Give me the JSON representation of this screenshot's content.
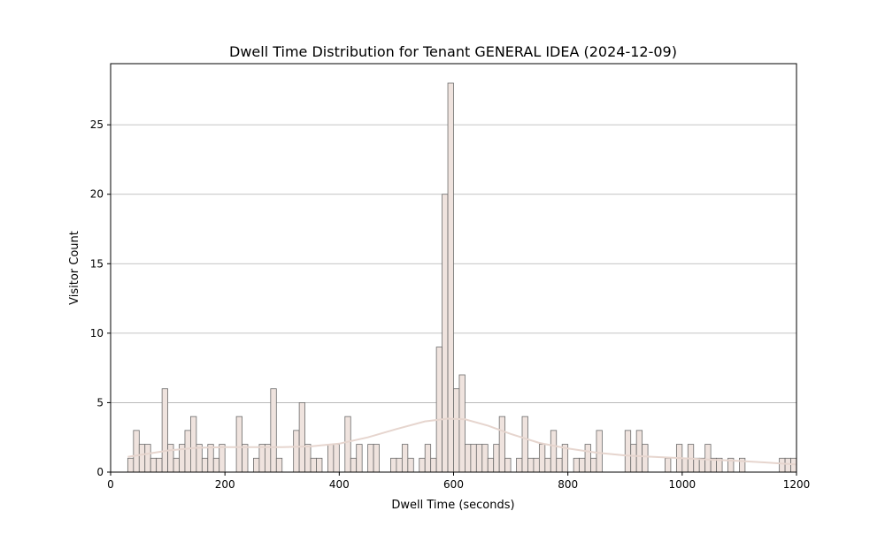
{
  "chart_data": {
    "type": "bar",
    "title": "Dwell Time Distribution for Tenant GENERAL IDEA (2024-12-09)",
    "xlabel": "Dwell Time (seconds)",
    "ylabel": "Visitor Count",
    "xlim": [
      0,
      1200
    ],
    "ylim": [
      0,
      29.4
    ],
    "xticks": [
      0,
      200,
      400,
      600,
      800,
      1000,
      1200
    ],
    "yticks": [
      0,
      5,
      10,
      15,
      20,
      25
    ],
    "grid": "y",
    "legend": "none",
    "bin_width": 10,
    "bar_fill": "#efe3de",
    "bar_edge": "#6b6b6b",
    "kde_color": "#e6d5ce",
    "bins": [
      {
        "x": 30,
        "count": 1
      },
      {
        "x": 40,
        "count": 3
      },
      {
        "x": 50,
        "count": 2
      },
      {
        "x": 60,
        "count": 2
      },
      {
        "x": 70,
        "count": 1
      },
      {
        "x": 80,
        "count": 1
      },
      {
        "x": 90,
        "count": 6
      },
      {
        "x": 100,
        "count": 2
      },
      {
        "x": 110,
        "count": 1
      },
      {
        "x": 120,
        "count": 2
      },
      {
        "x": 130,
        "count": 3
      },
      {
        "x": 140,
        "count": 4
      },
      {
        "x": 150,
        "count": 2
      },
      {
        "x": 160,
        "count": 1
      },
      {
        "x": 170,
        "count": 2
      },
      {
        "x": 180,
        "count": 1
      },
      {
        "x": 190,
        "count": 2
      },
      {
        "x": 220,
        "count": 4
      },
      {
        "x": 230,
        "count": 2
      },
      {
        "x": 250,
        "count": 1
      },
      {
        "x": 260,
        "count": 2
      },
      {
        "x": 270,
        "count": 2
      },
      {
        "x": 280,
        "count": 6
      },
      {
        "x": 290,
        "count": 1
      },
      {
        "x": 320,
        "count": 3
      },
      {
        "x": 330,
        "count": 5
      },
      {
        "x": 340,
        "count": 2
      },
      {
        "x": 350,
        "count": 1
      },
      {
        "x": 360,
        "count": 1
      },
      {
        "x": 380,
        "count": 2
      },
      {
        "x": 390,
        "count": 2
      },
      {
        "x": 410,
        "count": 4
      },
      {
        "x": 420,
        "count": 1
      },
      {
        "x": 430,
        "count": 2
      },
      {
        "x": 450,
        "count": 2
      },
      {
        "x": 460,
        "count": 2
      },
      {
        "x": 490,
        "count": 1
      },
      {
        "x": 500,
        "count": 1
      },
      {
        "x": 510,
        "count": 2
      },
      {
        "x": 520,
        "count": 1
      },
      {
        "x": 540,
        "count": 1
      },
      {
        "x": 550,
        "count": 2
      },
      {
        "x": 560,
        "count": 1
      },
      {
        "x": 570,
        "count": 9
      },
      {
        "x": 580,
        "count": 20
      },
      {
        "x": 590,
        "count": 28
      },
      {
        "x": 600,
        "count": 6
      },
      {
        "x": 610,
        "count": 7
      },
      {
        "x": 620,
        "count": 2
      },
      {
        "x": 630,
        "count": 2
      },
      {
        "x": 640,
        "count": 2
      },
      {
        "x": 650,
        "count": 2
      },
      {
        "x": 660,
        "count": 1
      },
      {
        "x": 670,
        "count": 2
      },
      {
        "x": 680,
        "count": 4
      },
      {
        "x": 690,
        "count": 1
      },
      {
        "x": 710,
        "count": 1
      },
      {
        "x": 720,
        "count": 4
      },
      {
        "x": 730,
        "count": 1
      },
      {
        "x": 740,
        "count": 1
      },
      {
        "x": 750,
        "count": 2
      },
      {
        "x": 760,
        "count": 1
      },
      {
        "x": 770,
        "count": 3
      },
      {
        "x": 780,
        "count": 1
      },
      {
        "x": 790,
        "count": 2
      },
      {
        "x": 810,
        "count": 1
      },
      {
        "x": 820,
        "count": 1
      },
      {
        "x": 830,
        "count": 2
      },
      {
        "x": 840,
        "count": 1
      },
      {
        "x": 850,
        "count": 3
      },
      {
        "x": 900,
        "count": 3
      },
      {
        "x": 910,
        "count": 2
      },
      {
        "x": 920,
        "count": 3
      },
      {
        "x": 930,
        "count": 2
      },
      {
        "x": 970,
        "count": 1
      },
      {
        "x": 990,
        "count": 2
      },
      {
        "x": 1000,
        "count": 1
      },
      {
        "x": 1010,
        "count": 2
      },
      {
        "x": 1020,
        "count": 1
      },
      {
        "x": 1030,
        "count": 1
      },
      {
        "x": 1040,
        "count": 2
      },
      {
        "x": 1050,
        "count": 1
      },
      {
        "x": 1060,
        "count": 1
      },
      {
        "x": 1080,
        "count": 1
      },
      {
        "x": 1100,
        "count": 1
      },
      {
        "x": 1170,
        "count": 1
      },
      {
        "x": 1180,
        "count": 1
      },
      {
        "x": 1190,
        "count": 1
      }
    ],
    "kde_curve": [
      {
        "x": 30,
        "y": 1.1
      },
      {
        "x": 100,
        "y": 1.55
      },
      {
        "x": 150,
        "y": 1.75
      },
      {
        "x": 200,
        "y": 1.8
      },
      {
        "x": 250,
        "y": 1.8
      },
      {
        "x": 300,
        "y": 1.8
      },
      {
        "x": 350,
        "y": 1.85
      },
      {
        "x": 400,
        "y": 2.05
      },
      {
        "x": 450,
        "y": 2.5
      },
      {
        "x": 500,
        "y": 3.1
      },
      {
        "x": 550,
        "y": 3.65
      },
      {
        "x": 590,
        "y": 3.85
      },
      {
        "x": 620,
        "y": 3.8
      },
      {
        "x": 660,
        "y": 3.35
      },
      {
        "x": 700,
        "y": 2.75
      },
      {
        "x": 750,
        "y": 2.1
      },
      {
        "x": 800,
        "y": 1.7
      },
      {
        "x": 850,
        "y": 1.4
      },
      {
        "x": 900,
        "y": 1.2
      },
      {
        "x": 950,
        "y": 1.1
      },
      {
        "x": 1000,
        "y": 1.0
      },
      {
        "x": 1050,
        "y": 0.9
      },
      {
        "x": 1100,
        "y": 0.8
      },
      {
        "x": 1150,
        "y": 0.68
      },
      {
        "x": 1200,
        "y": 0.55
      }
    ]
  }
}
